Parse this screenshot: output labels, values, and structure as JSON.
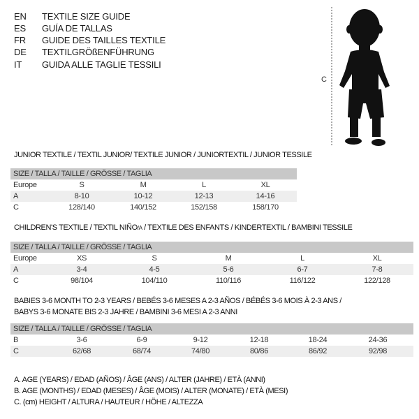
{
  "languages": [
    {
      "code": "EN",
      "title": "TEXTILE SIZE GUIDE"
    },
    {
      "code": "ES",
      "title": "GUÍA DE TALLAS"
    },
    {
      "code": "FR",
      "title": "GUIDE DES TAILLES TEXTILE"
    },
    {
      "code": "DE",
      "title": "TEXTILGRÖßENFÜHRUNG"
    },
    {
      "code": "IT",
      "title": "GUIDA ALLE TAGLIE TESSILI"
    }
  ],
  "figure": {
    "label": "C",
    "icon": "child-silhouette"
  },
  "size_header": "SIZE / TALLA / TAILLE / GRÖSSE / TAGLIA",
  "junior": {
    "title": "JUNIOR TEXTILE / TEXTIL JUNIOR/ TEXTILE JUNIOR / JUNIORTEXTIL / JUNIOR TESSILE",
    "rows": [
      {
        "label": "Europe",
        "cells": [
          "S",
          "M",
          "L",
          "XL"
        ]
      },
      {
        "label": "A",
        "cells": [
          "8-10",
          "10-12",
          "12-13",
          "14-16"
        ]
      },
      {
        "label": "C",
        "cells": [
          "128/140",
          "140/152",
          "152/158",
          "158/170"
        ]
      }
    ]
  },
  "children": {
    "title_a": "CHILDREN'S TEXTILE / TEXTIL NIÑO",
    "title_sub": "/A",
    "title_b": " / TEXTILE DES ENFANTS / KINDERTEXTIL / BAMBINI TESSILE",
    "rows": [
      {
        "label": "Europe",
        "cells": [
          "XS",
          "S",
          "M",
          "L",
          "XL"
        ]
      },
      {
        "label": "A",
        "cells": [
          "3-4",
          "4-5",
          "5-6",
          "6-7",
          "7-8"
        ]
      },
      {
        "label": "C",
        "cells": [
          "98/104",
          "104/110",
          "110/116",
          "116/122",
          "122/128"
        ]
      }
    ]
  },
  "babies": {
    "title_line1": "BABIES 3-6 MONTH TO 2-3 YEARS / BEBÉS 3-6 MESES A 2-3 AÑOS / BÉBÉS 3-6 MOIS À 2-3 ANS /",
    "title_line2": "BABYS 3-6 MONATE BIS 2-3 JAHRE / BAMBINI 3-6 MESI A 2-3 ANNI",
    "rows": [
      {
        "label": "B",
        "cells": [
          "3-6",
          "6-9",
          "9-12",
          "12-18",
          "18-24",
          "24-36"
        ]
      },
      {
        "label": "C",
        "cells": [
          "62/68",
          "68/74",
          "74/80",
          "80/86",
          "86/92",
          "92/98"
        ]
      }
    ]
  },
  "legend": [
    "A. AGE (YEARS) / EDAD (AÑOS) / ÂGE (ANS) / ALTER (JAHRE) / ETÀ (ANNI)",
    "B. AGE (MONTHS) / EDAD (MESES) / ÂGE (MOIS) / ALTER (MONATE) / ETÀ (MESI)",
    "C. (cm) HEIGHT / ALTURA / HAUTEUR / HÖHE / ALTEZZA"
  ]
}
